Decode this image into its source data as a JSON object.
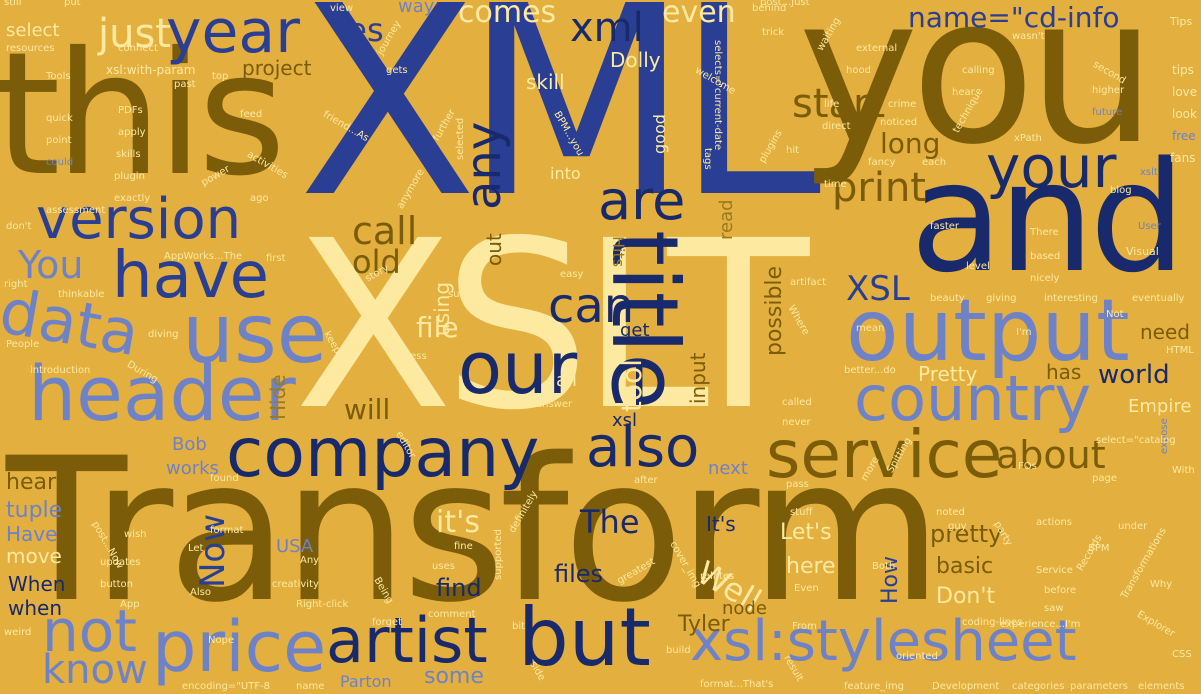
{
  "cloud": {
    "background": "#e3af3e",
    "palette": [
      "#2a3f93",
      "#7b5c08",
      "#fde9a0",
      "#6e82c8",
      "#182a6b",
      "#9a7a1e"
    ],
    "words": [
      "XML",
      "XSLT",
      "Transform",
      "you",
      "this",
      "and",
      "title",
      "our",
      "company",
      "service",
      "output",
      "country",
      "header",
      "use",
      "have",
      "data",
      "version",
      "year",
      "just",
      "print",
      "your",
      "artist",
      "but",
      "price",
      "xsl:stylesheet",
      "not",
      "know",
      "also",
      "are",
      "can",
      "any",
      "xml",
      "start",
      "name=\"cd-info",
      "Yes",
      "comes",
      "even",
      "skill",
      "Dolly",
      "project",
      "You",
      "call",
      "old",
      "will",
      "file",
      "tool",
      "possible",
      "XSL",
      "long",
      "about",
      "world",
      "Pretty",
      "need",
      "has",
      "Empire",
      "The",
      "Now",
      "it's",
      "Well",
      "Let's",
      "here",
      "pretty",
      "basic",
      "Don't",
      "find",
      "files",
      "Tyler",
      "How",
      "It's",
      "next",
      "works",
      "Bob",
      "heart",
      "tuple",
      "Have",
      "move",
      "When",
      "when",
      "USA",
      "some",
      "Parton",
      "node",
      "Hide",
      "using",
      "out",
      "input",
      "get",
      "all",
      "xsl",
      "select",
      "way",
      "into",
      "good",
      "Hits",
      "read",
      "view",
      "Tips",
      "tips",
      "love",
      "look",
      "free",
      "fans",
      "xslt",
      "blog",
      "User",
      "Visual",
      "eventually",
      "HTML",
      "With",
      "expose",
      "parameters",
      "elements",
      "categories",
      "Development",
      "feature_img",
      "encoding=\"UTF-8",
      "coding-lines",
      "Explorer",
      "Transformations",
      "Records",
      "Service",
      "actions",
      "under",
      "oriented",
      "Both",
      "From",
      "introduction",
      "People",
      "resources",
      "Tools",
      "xsl:with-param",
      "past",
      "quick",
      "point",
      "could",
      "skills",
      "plugin",
      "exactly",
      "assessment",
      "don't",
      "apply",
      "PDFs",
      "friend...As",
      "activities",
      "ago",
      "power",
      "anymore",
      "first",
      "story",
      "thinkable",
      "right",
      "During",
      "diving",
      "AppWorks...The",
      "further",
      "selected",
      "BPM...you",
      "behind",
      "trick",
      "calling",
      "hear",
      "higher",
      "future",
      "external",
      "hood",
      "second",
      "interesting",
      "There",
      "based",
      "nicely",
      "giving",
      "beauty",
      "artifact",
      "level",
      "faster",
      "fancy",
      "each",
      "crime",
      "noticed",
      "technique",
      "xPath",
      "time",
      "direct",
      "life",
      "hit",
      "plugins",
      "tags",
      "selects=\"current-date",
      "welcome",
      "journey",
      "gets",
      "waiting",
      "post...Just",
      "wasn't",
      "connect",
      "feed",
      "top",
      "Guess",
      "topic",
      "keep",
      "editor",
      "answer",
      "called",
      "never",
      "better...do",
      "I'm",
      "Not",
      "Where",
      "mean",
      "noted",
      "stuff",
      "guy",
      "party",
      "Spitting",
      "more",
      "page",
      "FOs",
      "select=\"catalog",
      "pass",
      "after",
      "found",
      "wish",
      "updates",
      "button",
      "App",
      "Nope",
      "weird",
      "Any",
      "creativity",
      "Also",
      "Being",
      "forget",
      "comment",
      "Let",
      "format",
      "fine",
      "uses",
      "definitely",
      "supported",
      "greatest",
      "cover_img",
      "relates",
      "result",
      "build",
      "bit",
      "side",
      "format...That's",
      "name",
      "experience...I'm",
      "saw",
      "before",
      "Even",
      "Ajax",
      "Right-click",
      "why",
      "Why",
      "CSS",
      "like",
      "easy",
      "sure",
      "still",
      "put",
      "post...Now",
      "BPM",
      "xsl:stript-space",
      "See",
      "don't"
    ]
  }
}
